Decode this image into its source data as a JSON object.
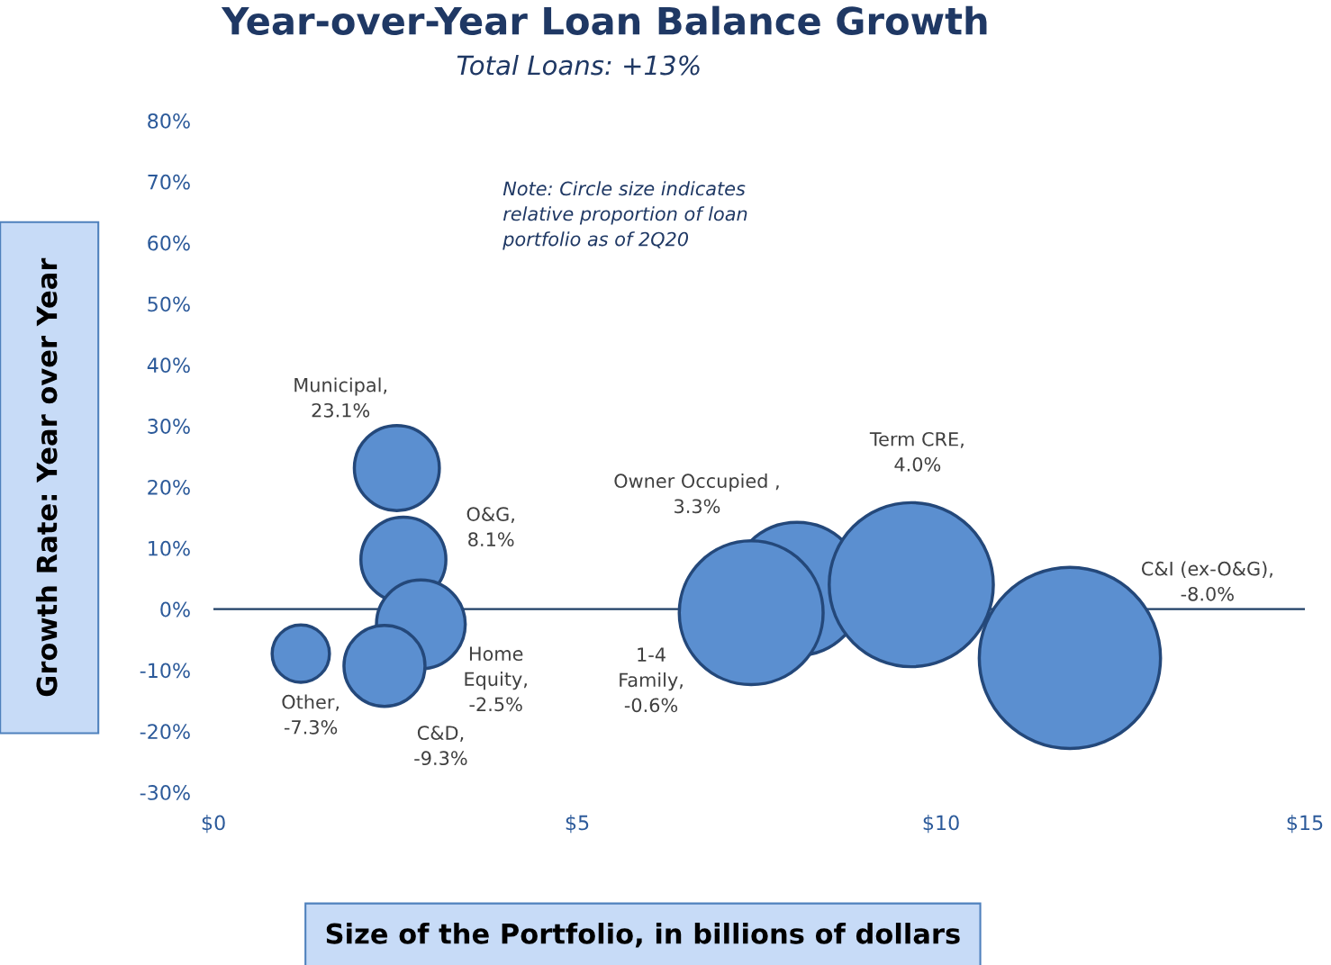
{
  "chart_data": {
    "type": "bubble",
    "title": "Year-over-Year Loan Balance Growth",
    "subtitle": "Total Loans: +13%",
    "xlabel": "Size of the Portfolio, in billions of dollars",
    "ylabel": "Growth Rate: Year over Year",
    "annotations": [
      "Note: Circle size indicates\nrelative proportion of loan\nportfolio as of 2Q20"
    ],
    "series": [
      {
        "color": "#5b8fd0",
        "x": [
          2.52,
          2.61,
          2.85,
          1.2,
          2.35,
          8.02,
          7.39,
          9.59,
          11.77
        ],
        "values": [
          23.1,
          8.1,
          -2.5,
          -7.3,
          -9.3,
          3.3,
          -0.6,
          4.0,
          -8.0
        ],
        "sizes": [
          0.22,
          0.22,
          0.24,
          0.1,
          0.2,
          0.54,
          0.63,
          0.82,
          1
        ],
        "value_labels": [
          "Municipal,\n23.1%",
          "O&G,\n8.1%",
          "Home\nEquity,\n-2.5%",
          "Other,\n-7.3%",
          "C&D,\n-9.3%",
          "Owner Occupied ,\n3.3%",
          "1-4\nFamily,\n-0.6%",
          "Term CRE,\n4.0%",
          "C&I (ex-O&G),\n-8.0%"
        ]
      }
    ],
    "xlim": [
      0,
      15
    ],
    "xticks": [
      {
        "value": 0,
        "label": "$0"
      },
      {
        "value": 5,
        "label": "$5"
      },
      {
        "value": 10,
        "label": "$10"
      },
      {
        "value": 15,
        "label": "$15"
      }
    ],
    "ylim": [
      -30,
      80
    ],
    "yticks": [
      {
        "value": -30,
        "label": "-30%"
      },
      {
        "value": -20,
        "label": "-20%"
      },
      {
        "value": -10,
        "label": "-10%"
      },
      {
        "value": 0,
        "label": "0%"
      },
      {
        "value": 10,
        "label": "10%"
      },
      {
        "value": 20,
        "label": "20%"
      },
      {
        "value": 30,
        "label": "30%"
      },
      {
        "value": 40,
        "label": "40%"
      },
      {
        "value": 50,
        "label": "50%"
      },
      {
        "value": 60,
        "label": "60%"
      },
      {
        "value": 70,
        "label": "70%"
      },
      {
        "value": 80,
        "label": "80%"
      }
    ],
    "ref_lines": [
      {
        "axis": "y",
        "value": 0,
        "color": "#1f3f66"
      }
    ],
    "grid": false
  }
}
